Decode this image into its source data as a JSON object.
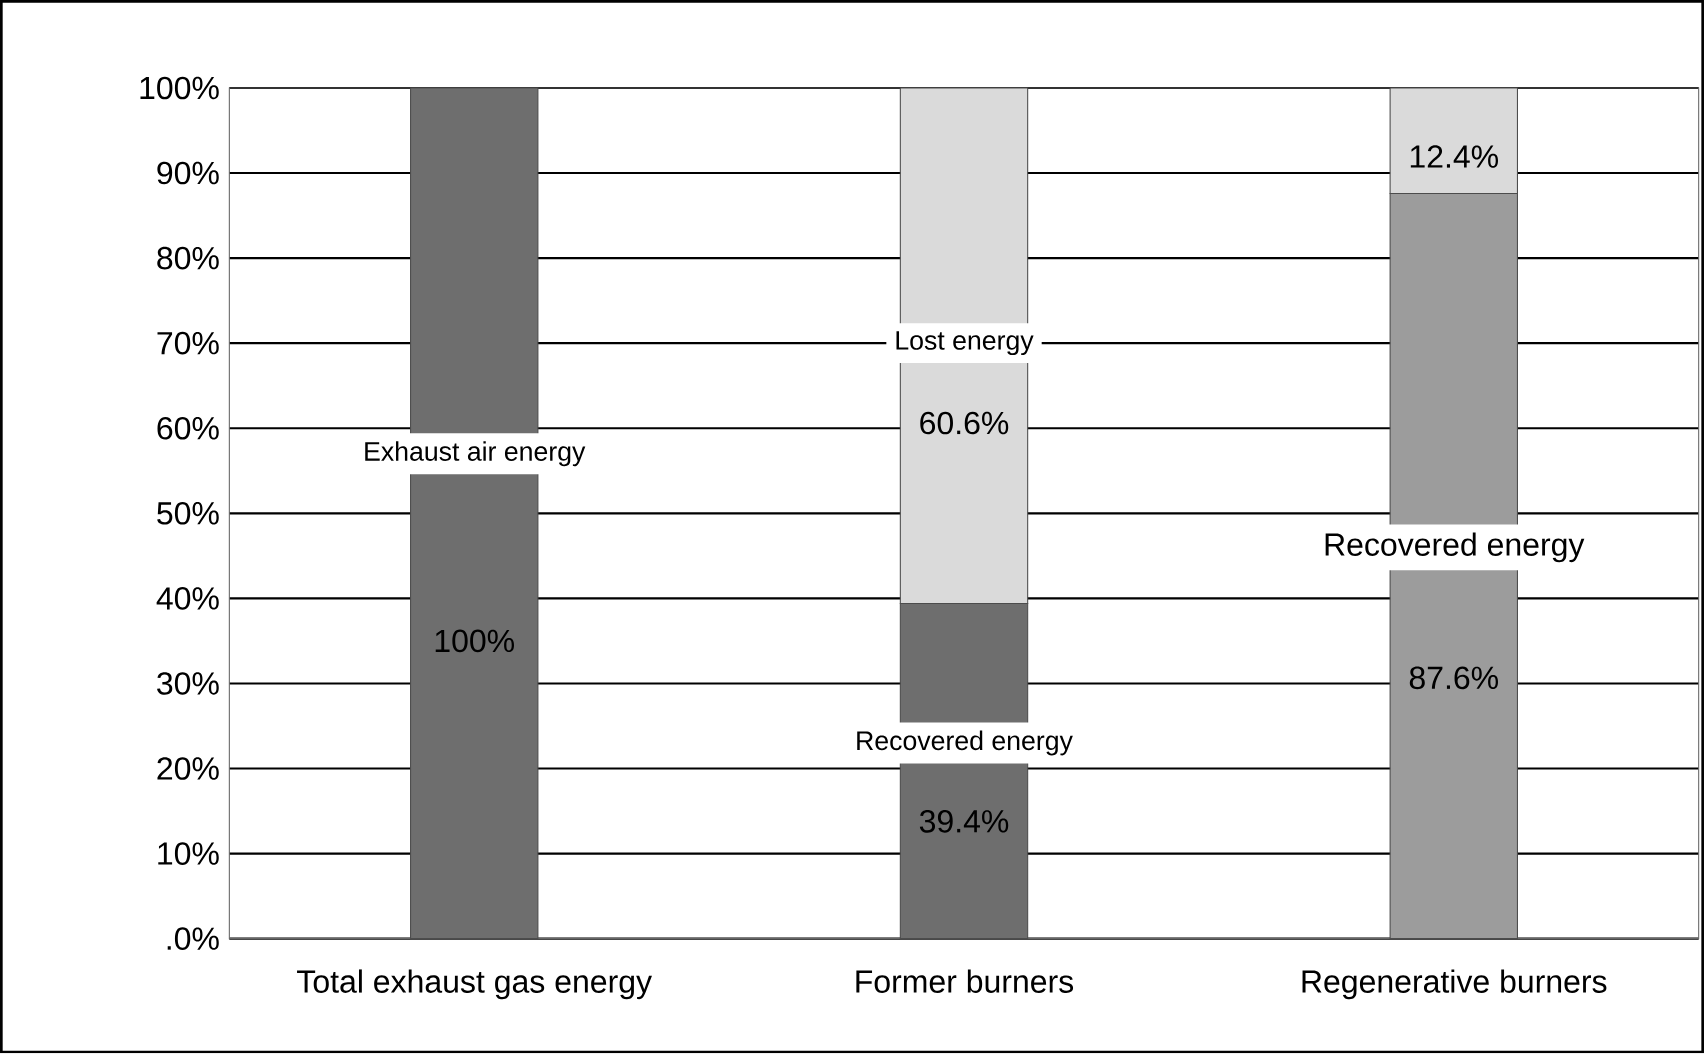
{
  "chart_data": {
    "type": "bar",
    "stacked": true,
    "categories": [
      "Total exhaust gas energy",
      "Former burners",
      "Regenerative burners"
    ],
    "series": [
      {
        "colors": [
          "#6e6e6e",
          "#6e6e6e",
          "#9c9c9c"
        ],
        "values": [
          100,
          39.4,
          87.6
        ],
        "value_labels": [
          "100%",
          "39.4%",
          "87.6%"
        ]
      },
      {
        "color": "#dadada",
        "values": [
          null,
          60.6,
          12.4
        ],
        "value_labels": [
          null,
          "60.6%",
          "12.4%"
        ]
      }
    ],
    "ylim": [
      0,
      100
    ],
    "yticks": [
      {
        "value": 0,
        "label": ".0%"
      },
      {
        "value": 10,
        "label": "10%"
      },
      {
        "value": 20,
        "label": "20%"
      },
      {
        "value": 30,
        "label": "30%"
      },
      {
        "value": 40,
        "label": "40%"
      },
      {
        "value": 50,
        "label": "50%"
      },
      {
        "value": 60,
        "label": "60%"
      },
      {
        "value": 70,
        "label": "70%"
      },
      {
        "value": 80,
        "label": "80%"
      },
      {
        "value": 90,
        "label": "90%"
      },
      {
        "value": 100,
        "label": "100%"
      }
    ],
    "grid": "y",
    "annotations": [
      "Exhaust air energy",
      "Lost energy",
      "Recovered energy",
      "Recovered energy"
    ]
  }
}
